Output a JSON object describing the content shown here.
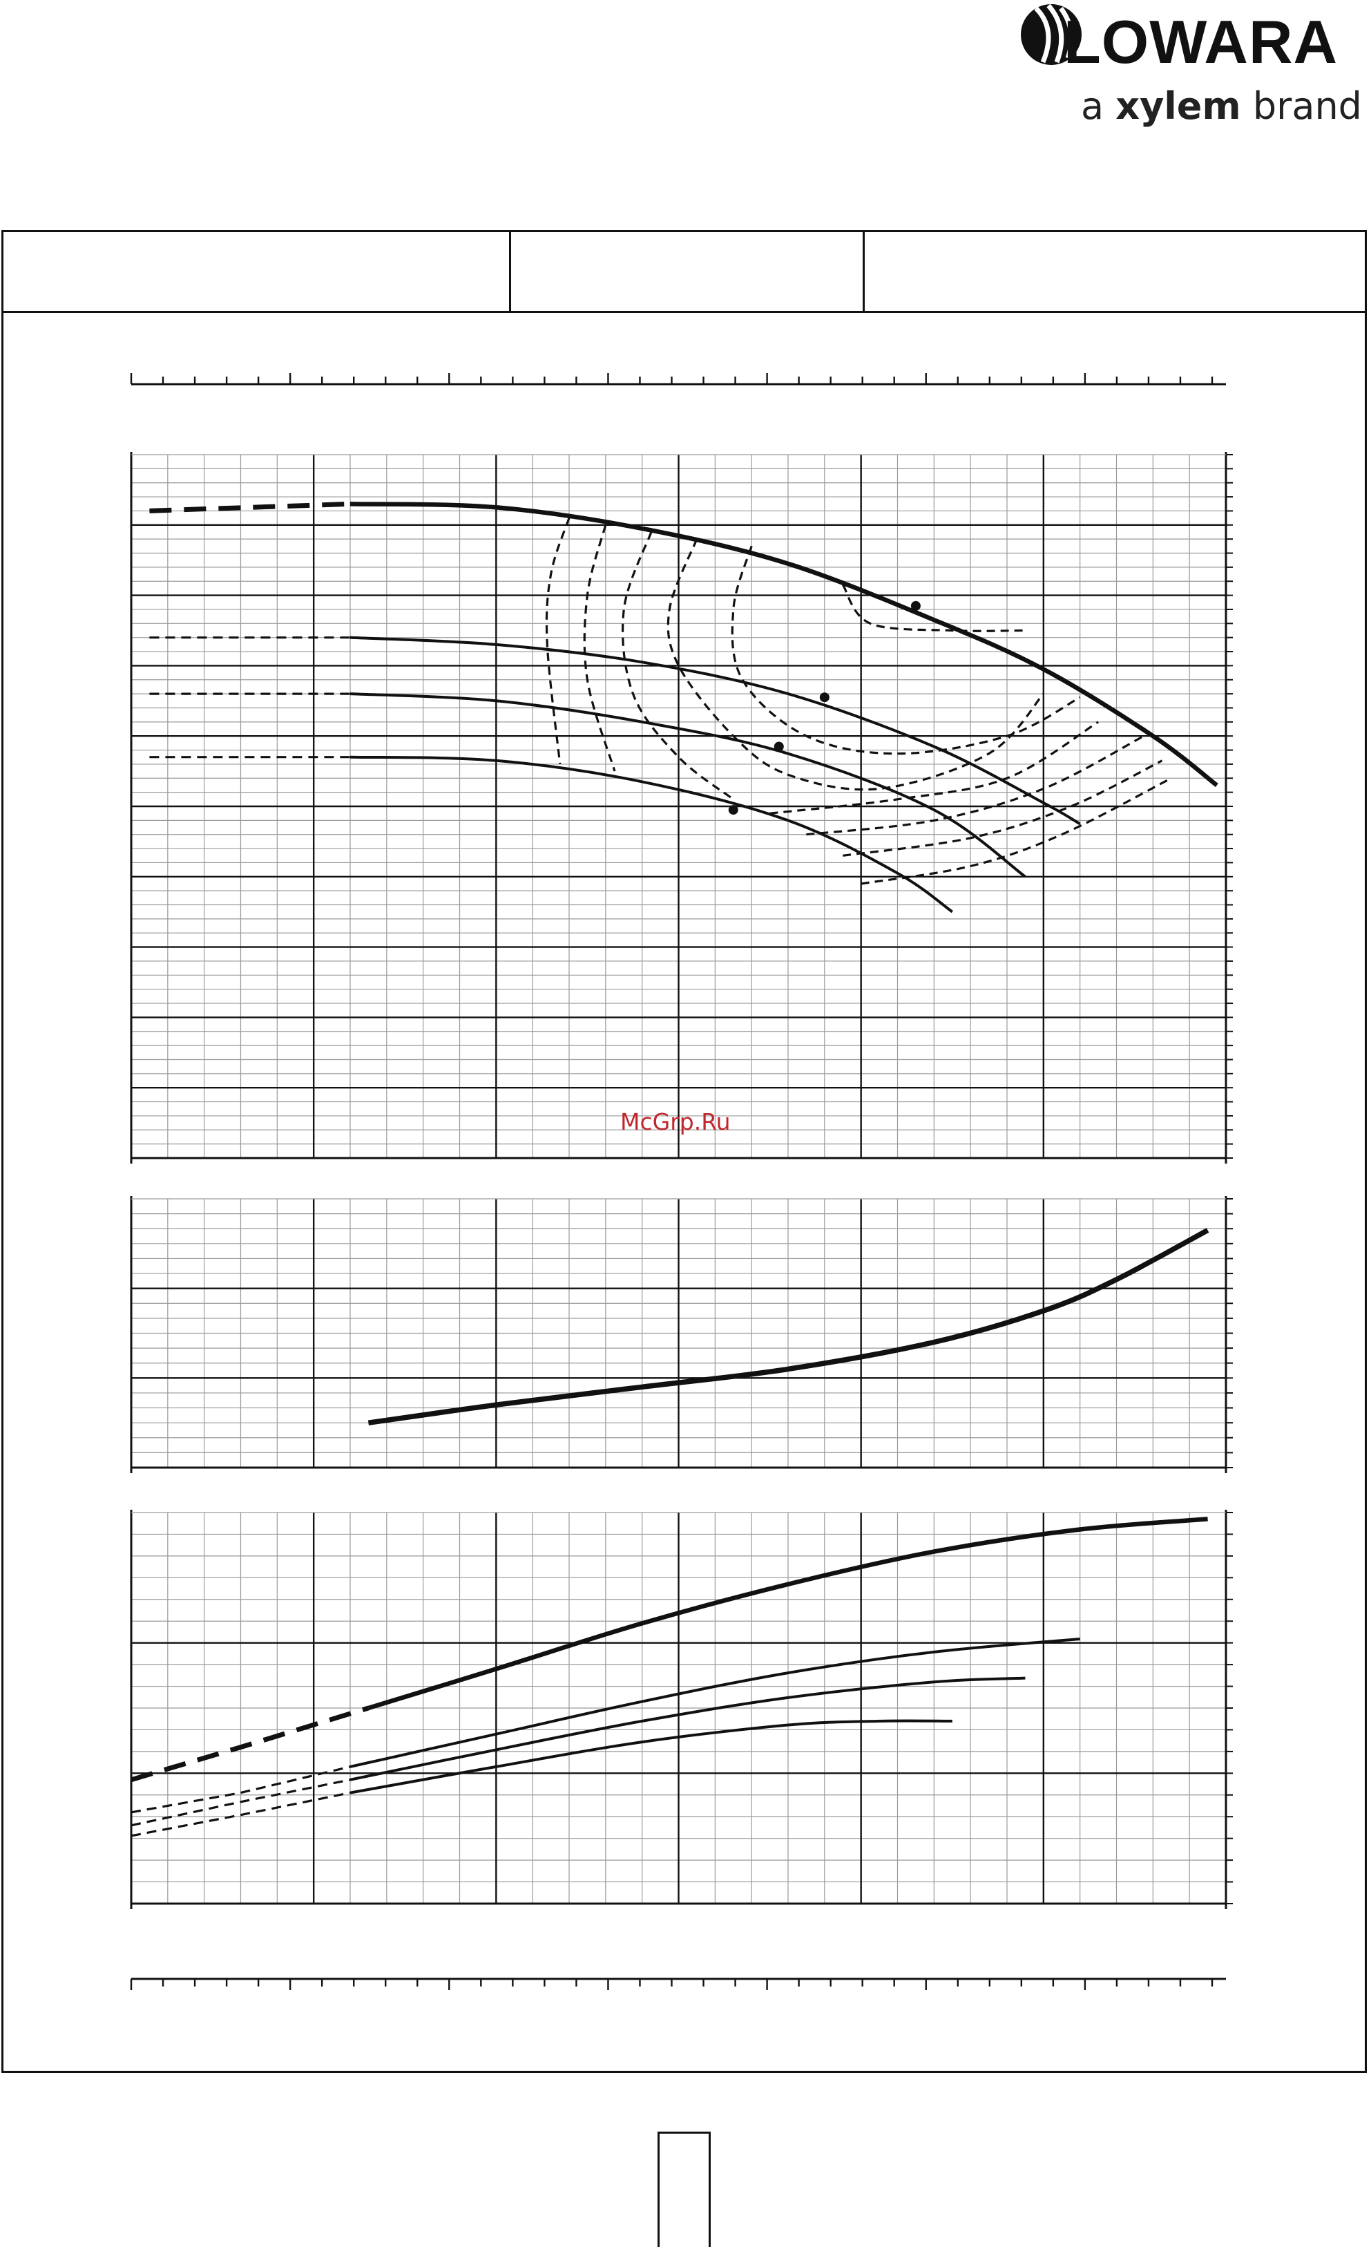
{
  "brand": {
    "logo_text": "LOWARA",
    "tagline_prefix": "a ",
    "tagline_bold": "xylem",
    "tagline_suffix": " brand"
  },
  "watermark": "McGrp.Ru",
  "colors": {
    "ink": "#111111",
    "grid": "#9a9a9a",
    "watermark": "#c0282d"
  },
  "chart_data": [
    {
      "type": "line",
      "title": "",
      "xlabel": "",
      "ylabel": "",
      "xlim": [
        0,
        6
      ],
      "ylim": [
        0,
        10
      ],
      "grid": true,
      "series": [
        {
          "values": [
            [
              0.1,
              9.2
            ],
            [
              1.2,
              9.3
            ],
            [
              2.0,
              9.25
            ],
            [
              2.8,
              8.95
            ],
            [
              3.6,
              8.45
            ],
            [
              4.4,
              7.65
            ],
            [
              5.0,
              6.95
            ],
            [
              5.6,
              6.0
            ],
            [
              5.95,
              5.3
            ]
          ],
          "dashed_to_x": 1.2
        },
        {
          "values": [
            [
              0.1,
              7.4
            ],
            [
              1.2,
              7.4
            ],
            [
              2.0,
              7.3
            ],
            [
              2.8,
              7.05
            ],
            [
              3.6,
              6.6
            ],
            [
              4.4,
              5.85
            ],
            [
              5.0,
              5.05
            ],
            [
              5.2,
              4.75
            ]
          ],
          "dashed_to_x": 1.2
        },
        {
          "values": [
            [
              0.1,
              6.6
            ],
            [
              1.2,
              6.6
            ],
            [
              2.0,
              6.5
            ],
            [
              2.8,
              6.2
            ],
            [
              3.6,
              5.75
            ],
            [
              4.4,
              4.95
            ],
            [
              4.9,
              4.0
            ]
          ],
          "dashed_to_x": 1.2
        },
        {
          "values": [
            [
              0.1,
              5.7
            ],
            [
              1.2,
              5.7
            ],
            [
              2.0,
              5.65
            ],
            [
              2.8,
              5.35
            ],
            [
              3.6,
              4.8
            ],
            [
              4.2,
              4.05
            ],
            [
              4.5,
              3.5
            ]
          ],
          "dashed_to_x": 1.2
        }
      ],
      "iso_curves": [
        [
          [
            2.4,
            9.1
          ],
          [
            2.3,
            8.3
          ],
          [
            2.28,
            7.3
          ],
          [
            2.35,
            5.6
          ]
        ],
        [
          [
            2.6,
            9.0
          ],
          [
            2.5,
            8.0
          ],
          [
            2.5,
            6.8
          ],
          [
            2.65,
            5.5
          ]
        ],
        [
          [
            2.85,
            8.9
          ],
          [
            2.7,
            7.8
          ],
          [
            2.75,
            6.6
          ],
          [
            3.0,
            5.7
          ],
          [
            3.3,
            5.1
          ]
        ],
        [
          [
            3.1,
            8.8
          ],
          [
            2.95,
            7.8
          ],
          [
            3.0,
            7.0
          ],
          [
            3.3,
            6.0
          ],
          [
            3.6,
            5.45
          ],
          [
            4.1,
            5.25
          ],
          [
            4.7,
            5.75
          ],
          [
            5.0,
            6.6
          ]
        ],
        [
          [
            3.4,
            8.7
          ],
          [
            3.3,
            7.8
          ],
          [
            3.35,
            6.8
          ],
          [
            3.7,
            6.0
          ],
          [
            4.2,
            5.75
          ],
          [
            4.8,
            6.0
          ],
          [
            5.2,
            6.55
          ]
        ],
        [
          [
            3.5,
            4.9
          ],
          [
            4.2,
            5.1
          ],
          [
            4.8,
            5.4
          ],
          [
            5.3,
            6.2
          ]
        ],
        [
          [
            3.7,
            4.6
          ],
          [
            4.4,
            4.8
          ],
          [
            5.0,
            5.25
          ],
          [
            5.55,
            6.0
          ]
        ],
        [
          [
            3.9,
            4.3
          ],
          [
            4.6,
            4.55
          ],
          [
            5.15,
            5.0
          ],
          [
            5.65,
            5.65
          ]
        ],
        [
          [
            4.0,
            3.9
          ],
          [
            4.6,
            4.15
          ],
          [
            5.1,
            4.6
          ],
          [
            5.7,
            5.4
          ]
        ],
        [
          [
            3.9,
            8.15
          ],
          [
            4.05,
            7.6
          ],
          [
            4.5,
            7.5
          ],
          [
            4.9,
            7.5
          ]
        ]
      ],
      "markers": [
        [
          4.3,
          7.85
        ],
        [
          3.8,
          6.55
        ],
        [
          3.55,
          5.85
        ],
        [
          3.3,
          4.95
        ]
      ]
    },
    {
      "type": "line",
      "title": "",
      "xlim": [
        0,
        6
      ],
      "ylim": [
        0,
        3
      ],
      "grid": true,
      "series": [
        {
          "values": [
            [
              1.3,
              0.5
            ],
            [
              2.0,
              0.7
            ],
            [
              2.8,
              0.9
            ],
            [
              3.6,
              1.1
            ],
            [
              4.4,
              1.4
            ],
            [
              5.0,
              1.75
            ],
            [
              5.4,
              2.1
            ],
            [
              5.9,
              2.65
            ]
          ]
        }
      ]
    },
    {
      "type": "line",
      "title": "",
      "xlim": [
        0,
        6
      ],
      "ylim": [
        0,
        3
      ],
      "grid": true,
      "series": [
        {
          "values": [
            [
              0.0,
              0.95
            ],
            [
              0.6,
              1.2
            ],
            [
              1.3,
              1.5
            ],
            [
              2.0,
              1.8
            ],
            [
              2.8,
              2.15
            ],
            [
              3.6,
              2.45
            ],
            [
              4.4,
              2.7
            ],
            [
              5.2,
              2.87
            ],
            [
              5.9,
              2.95
            ]
          ],
          "dashed_to_x": 1.3
        },
        {
          "values": [
            [
              0.0,
              0.7
            ],
            [
              0.6,
              0.85
            ],
            [
              1.2,
              1.05
            ],
            [
              2.0,
              1.3
            ],
            [
              2.8,
              1.55
            ],
            [
              3.6,
              1.77
            ],
            [
              4.4,
              1.93
            ],
            [
              5.2,
              2.03
            ]
          ],
          "dashed_to_x": 1.2
        },
        {
          "values": [
            [
              0.0,
              0.6
            ],
            [
              0.6,
              0.78
            ],
            [
              1.2,
              0.95
            ],
            [
              2.0,
              1.18
            ],
            [
              2.8,
              1.4
            ],
            [
              3.6,
              1.58
            ],
            [
              4.4,
              1.7
            ],
            [
              4.9,
              1.73
            ]
          ],
          "dashed_to_x": 1.2
        },
        {
          "values": [
            [
              0.0,
              0.52
            ],
            [
              0.6,
              0.68
            ],
            [
              1.2,
              0.85
            ],
            [
              2.0,
              1.05
            ],
            [
              2.8,
              1.24
            ],
            [
              3.6,
              1.37
            ],
            [
              4.1,
              1.4
            ],
            [
              4.5,
              1.4
            ]
          ],
          "dashed_to_x": 1.2
        }
      ]
    }
  ]
}
